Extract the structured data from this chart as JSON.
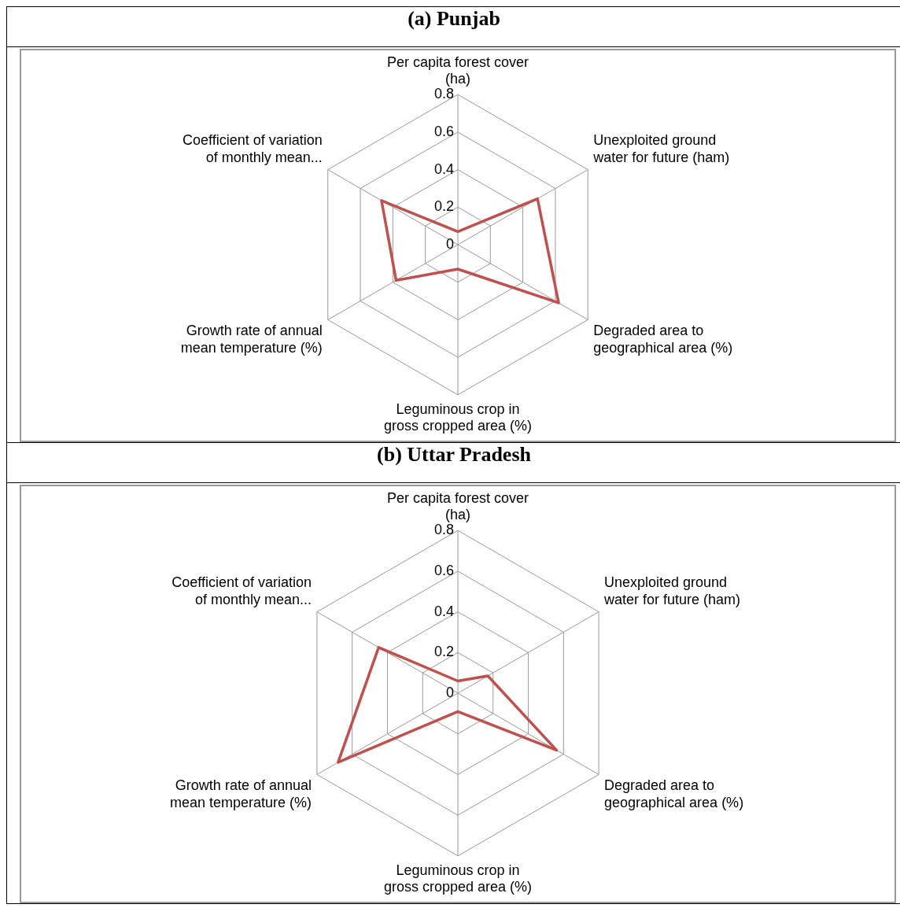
{
  "chart_data": [
    {
      "type": "radar",
      "title": "(a) Punjab",
      "categories": [
        "Per capita forest cover (ha)",
        "Unexploited ground water for future (ham)",
        "Degraded area to geographical area (%)",
        "Leguminous crop in gross cropped area (%)",
        "Growth rate of annual mean temperature (%)",
        "Coefficient of variation of monthly mean..."
      ],
      "series": [
        {
          "color": "#c0504d",
          "values": [
            0.07,
            0.49,
            0.62,
            0.13,
            0.38,
            0.47
          ]
        }
      ],
      "ylim": [
        0,
        0.8
      ],
      "yticks": [
        0,
        0.2,
        0.4,
        0.6,
        0.8
      ],
      "grid": true,
      "marker": "none",
      "legend": false
    },
    {
      "type": "radar",
      "title": "(b) Uttar Pradesh",
      "categories": [
        "Per capita forest cover (ha)",
        "Unexploited ground water for future (ham)",
        "Degraded area to geographical area (%)",
        "Leguminous crop in gross cropped area (%)",
        "Growth rate of annual mean temperature (%)",
        "Coefficient of variation of monthly mean..."
      ],
      "series": [
        {
          "color": "#c0504d",
          "values": [
            0.06,
            0.17,
            0.56,
            0.09,
            0.68,
            0.45
          ]
        }
      ],
      "ylim": [
        0,
        0.8
      ],
      "yticks": [
        0,
        0.2,
        0.4,
        0.6,
        0.8
      ],
      "grid": true,
      "marker": "none",
      "legend": false
    }
  ]
}
